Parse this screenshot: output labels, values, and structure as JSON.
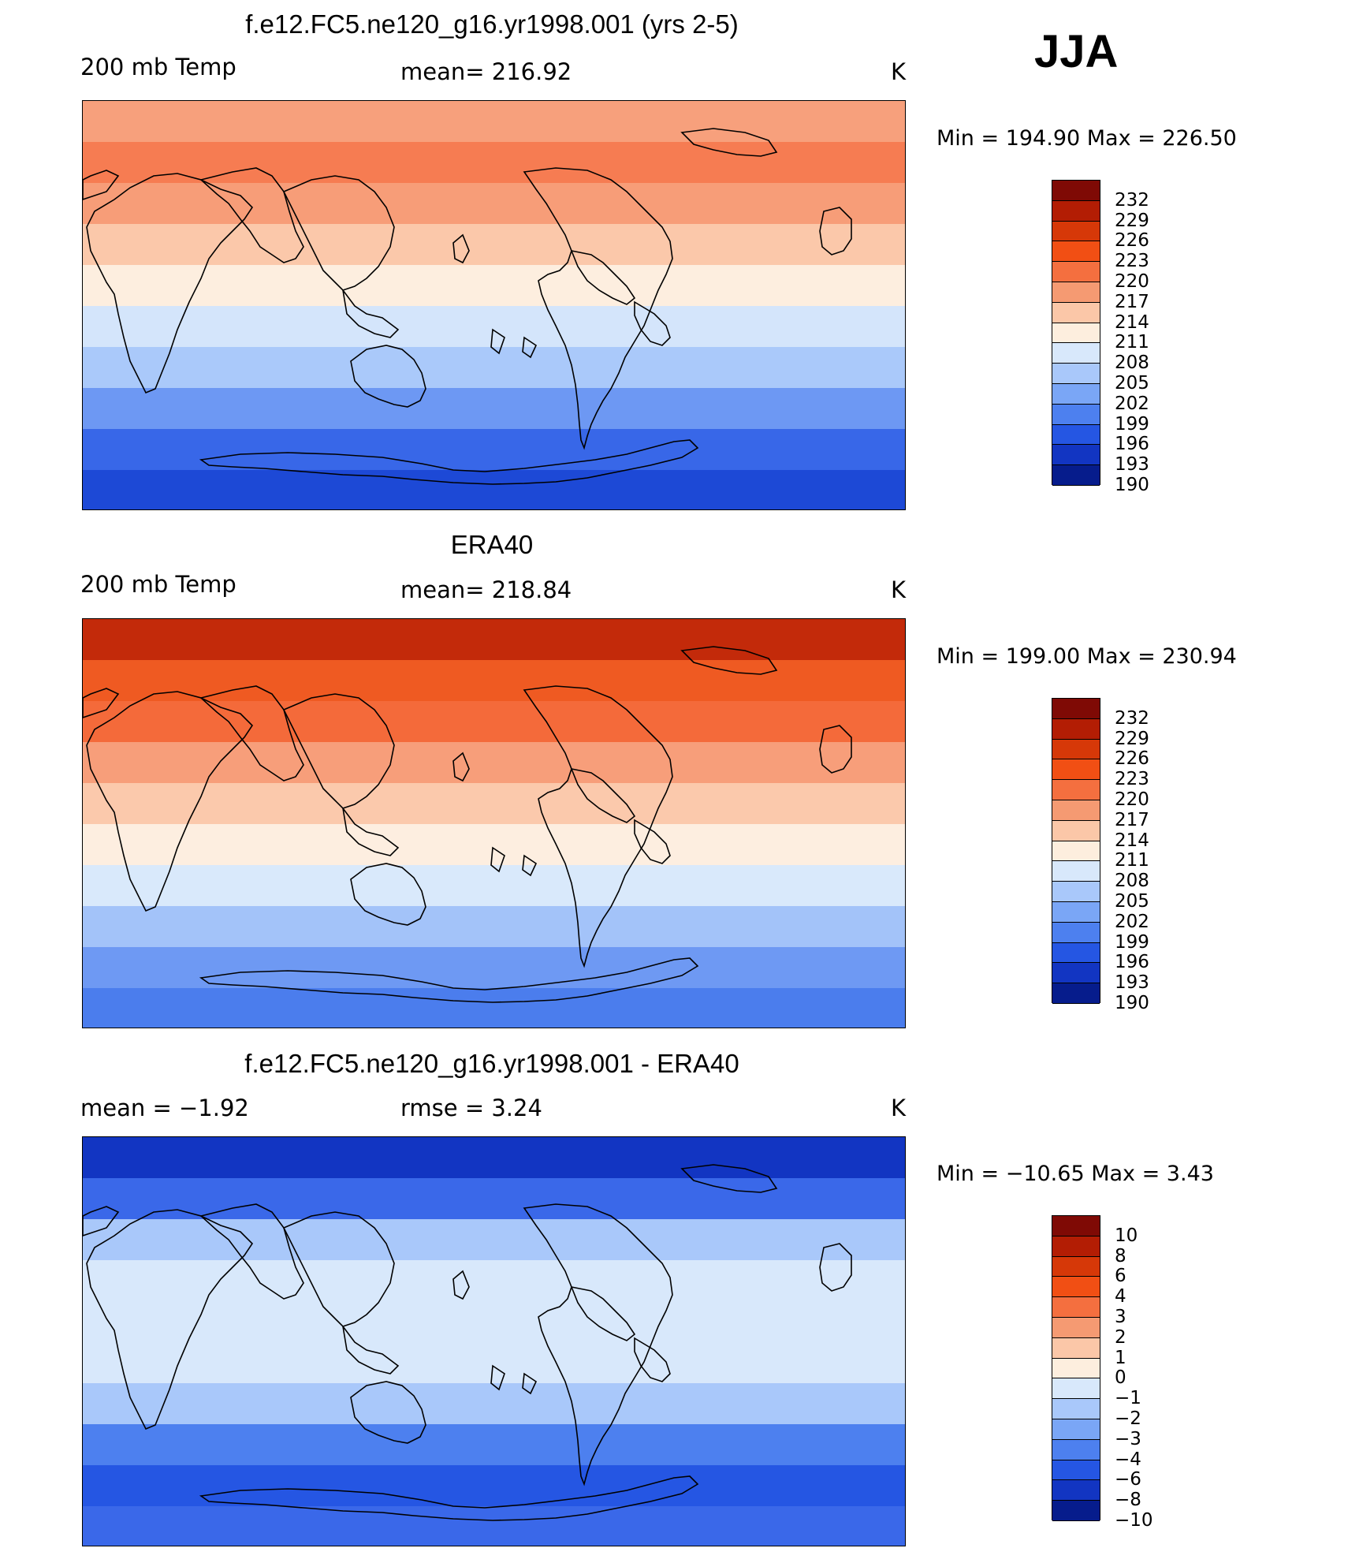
{
  "season": "JJA",
  "colors": {
    "ocean_outline": "#000000",
    "coast_stroke": "#000000"
  },
  "panels": [
    {
      "id": "model",
      "title": "f.e12.FC5.ne120_g16.yr1998.001 (yrs 2-5)",
      "left_label": "200 mb Temp",
      "center_label": "mean= 216.92",
      "units": "K",
      "minmax": "Min  =  194.90  Max  =  226.50",
      "colorbar": {
        "ticks": [
          "232",
          "229",
          "226",
          "223",
          "220",
          "217",
          "214",
          "211",
          "208",
          "205",
          "202",
          "199",
          "196",
          "193",
          "190"
        ],
        "colors": [
          "#7f0a05",
          "#b31d04",
          "#d63808",
          "#f14f14",
          "#f46f3f",
          "#f59a72",
          "#fbc7a8",
          "#fdeede",
          "#d8e8fb",
          "#a9c8fa",
          "#7aa6f6",
          "#4d80ef",
          "#2556e3",
          "#1235c2",
          "#061c8c"
        ]
      },
      "bands": [
        "#f7a07c",
        "#f67c52",
        "#f79d78",
        "#fbc8aa",
        "#fdeedf",
        "#d4e5fb",
        "#aac9fa",
        "#6d98f3",
        "#3867e8",
        "#1d49d6"
      ]
    },
    {
      "id": "obs",
      "title": "ERA40",
      "left_label": "200 mb Temp",
      "center_label": "mean= 218.84",
      "units": "K",
      "minmax": "Min  =  199.00  Max  =  230.94",
      "colorbar": {
        "ticks": [
          "232",
          "229",
          "226",
          "223",
          "220",
          "217",
          "214",
          "211",
          "208",
          "205",
          "202",
          "199",
          "196",
          "193",
          "190"
        ],
        "colors": [
          "#7f0a05",
          "#b31d04",
          "#d63808",
          "#f14f14",
          "#f46f3f",
          "#f59a72",
          "#fbc7a8",
          "#fdeede",
          "#d8e8fb",
          "#a9c8fa",
          "#7aa6f6",
          "#4d80ef",
          "#2556e3",
          "#1235c2",
          "#061c8c"
        ]
      },
      "bands": [
        "#c32a0a",
        "#ef5a22",
        "#f46a3a",
        "#f79e7a",
        "#fbc9ac",
        "#fdeee0",
        "#d9e9fb",
        "#a3c3f9",
        "#6e99f3",
        "#4b7ded"
      ]
    },
    {
      "id": "diff",
      "title": "f.e12.FC5.ne120_g16.yr1998.001 - ERA40",
      "left_label": "mean =    −1.92",
      "center_label": "rmse =     3.24",
      "units": "K",
      "minmax": "Min  =  −10.65  Max  =     3.43",
      "colorbar": {
        "ticks": [
          "10",
          "8",
          "6",
          "4",
          "3",
          "2",
          "1",
          "0",
          "−1",
          "−2",
          "−3",
          "−4",
          "−6",
          "−8",
          "−10"
        ],
        "colors": [
          "#7f0a05",
          "#b31d04",
          "#d63808",
          "#f14f14",
          "#f46f3f",
          "#f59a72",
          "#fbc7a8",
          "#fdeede",
          "#d8e8fb",
          "#a9c8fa",
          "#7aa6f6",
          "#4d80ef",
          "#2556e3",
          "#1235c2",
          "#061c8c"
        ]
      },
      "bands": [
        "#1235c2",
        "#3a68e9",
        "#a9c8fa",
        "#d8e8fb",
        "#d8e8fb",
        "#d8e8fb",
        "#a9c8fa",
        "#4d80ef",
        "#2556e3",
        "#3a68e9"
      ]
    }
  ]
}
